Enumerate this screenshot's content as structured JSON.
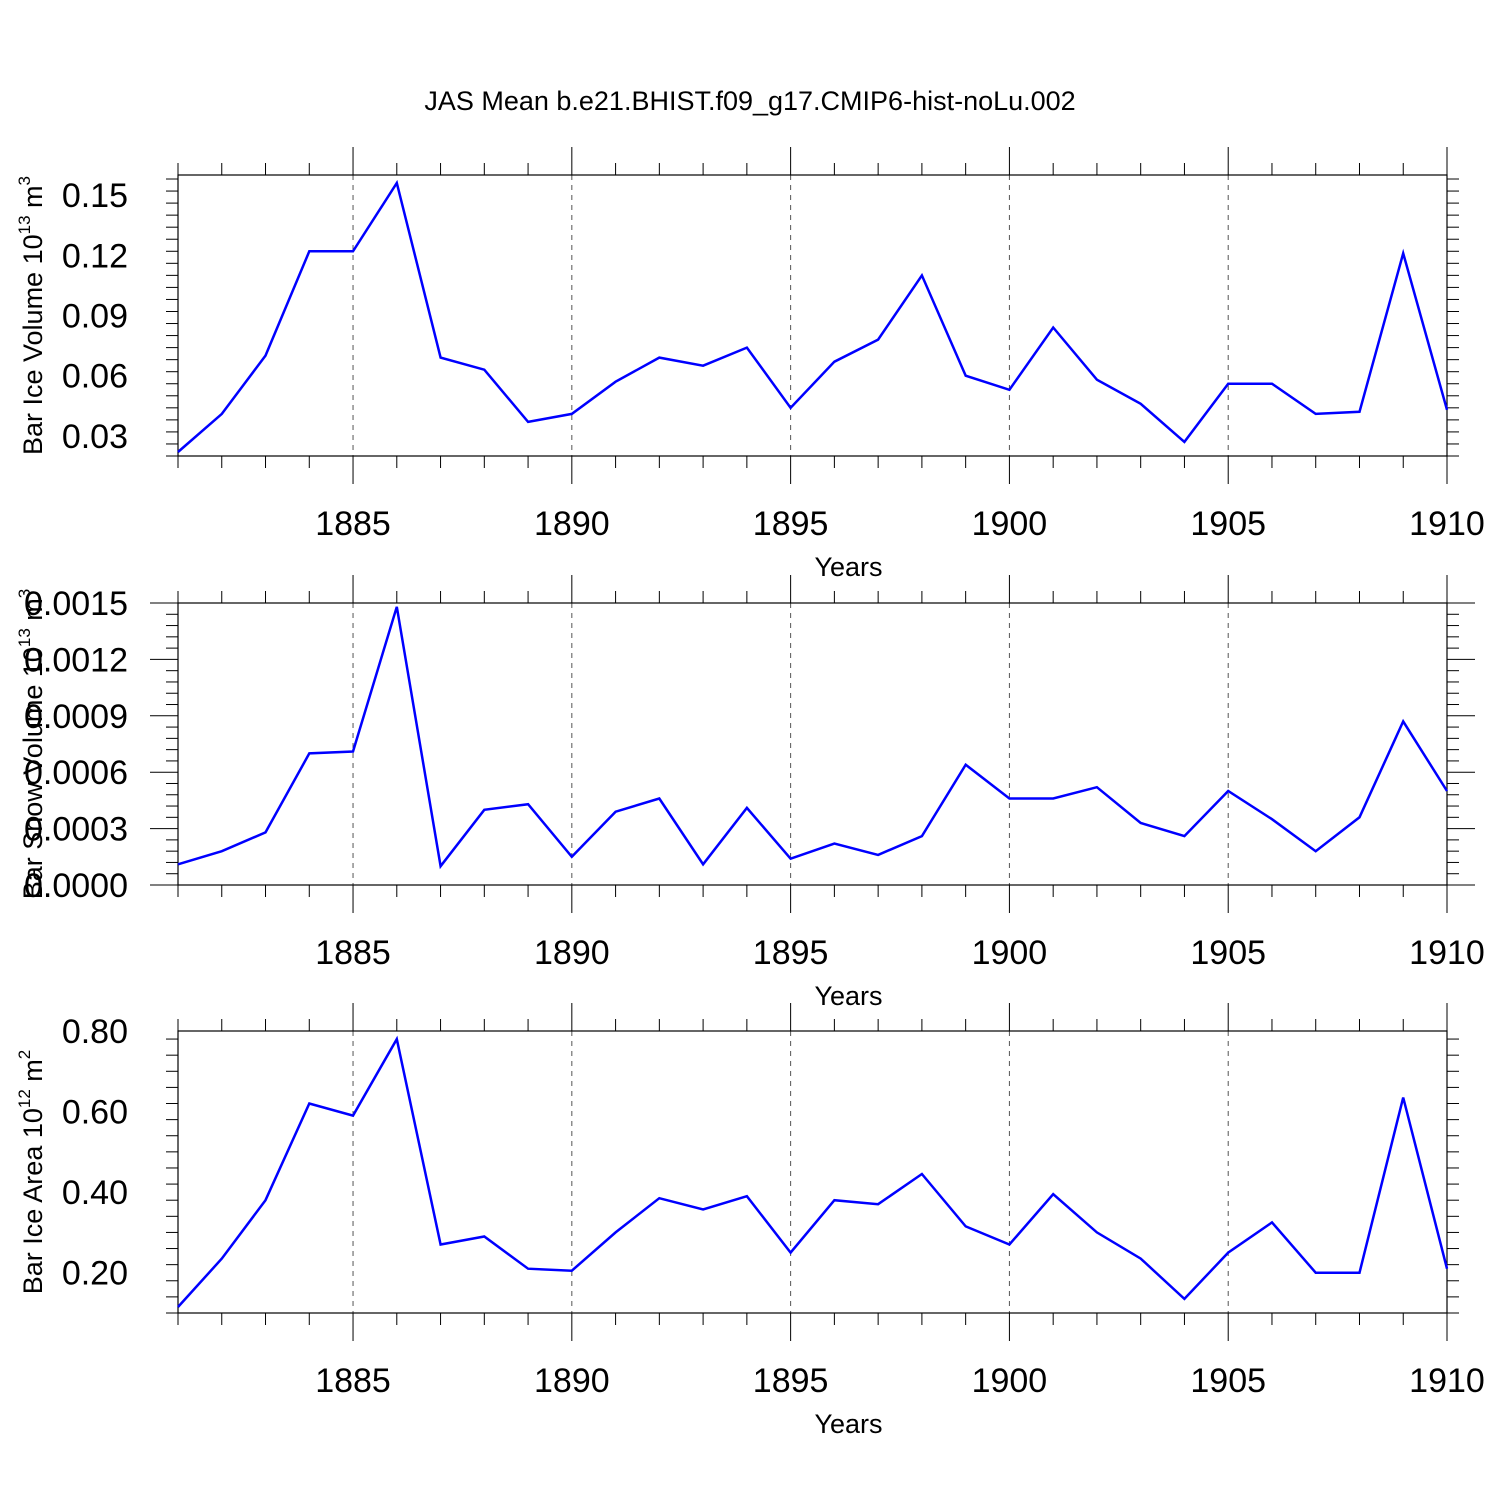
{
  "title": "JAS Mean b.e21.BHIST.f09_g17.CMIP6-hist-noLu.002",
  "chart_data": [
    {
      "type": "line",
      "title": "JAS Mean b.e21.BHIST.f09_g17.CMIP6-hist-noLu.002",
      "xlabel": "Years",
      "ylabel": "Bar Ice Volume 10",
      "ylabel_sup": "13",
      "ylabel_unit": " m",
      "ylabel_unit_sup": "3",
      "xlim": [
        1881,
        1910
      ],
      "ylim": [
        0.02,
        0.16
      ],
      "xticks": [
        "1885",
        "1890",
        "1895",
        "1900",
        "1905",
        "1910"
      ],
      "yticks": [
        "0.03",
        "0.06",
        "0.09",
        "0.12",
        "0.15"
      ],
      "grid": "dashed vertical at major x ticks",
      "color": "#0000ff",
      "x": [
        1881,
        1882,
        1883,
        1884,
        1885,
        1886,
        1887,
        1888,
        1889,
        1890,
        1891,
        1892,
        1893,
        1894,
        1895,
        1896,
        1897,
        1898,
        1899,
        1900,
        1901,
        1902,
        1903,
        1904,
        1905,
        1906,
        1907,
        1908,
        1909,
        1910
      ],
      "values": [
        0.022,
        0.041,
        0.07,
        0.122,
        0.122,
        0.156,
        0.069,
        0.063,
        0.037,
        0.041,
        0.057,
        0.069,
        0.065,
        0.074,
        0.044,
        0.067,
        0.078,
        0.11,
        0.06,
        0.053,
        0.084,
        0.058,
        0.046,
        0.027,
        0.056,
        0.056,
        0.041,
        0.042,
        0.121,
        0.043
      ]
    },
    {
      "type": "line",
      "xlabel": "Years",
      "ylabel": "Bar Snow Volume 10",
      "ylabel_sup": "13",
      "ylabel_unit": " m",
      "ylabel_unit_sup": "3",
      "xlim": [
        1881,
        1910
      ],
      "ylim": [
        0.0,
        0.0015
      ],
      "xticks": [
        "1885",
        "1890",
        "1895",
        "1900",
        "1905",
        "1910"
      ],
      "yticks": [
        "0.0000",
        "0.0003",
        "0.0006",
        "0.0009",
        "0.0012",
        "0.0015"
      ],
      "grid": "dashed vertical at major x ticks",
      "color": "#0000ff",
      "x": [
        1881,
        1882,
        1883,
        1884,
        1885,
        1886,
        1887,
        1888,
        1889,
        1890,
        1891,
        1892,
        1893,
        1894,
        1895,
        1896,
        1897,
        1898,
        1899,
        1900,
        1901,
        1902,
        1903,
        1904,
        1905,
        1906,
        1907,
        1908,
        1909,
        1910
      ],
      "values": [
        0.00011,
        0.00018,
        0.00028,
        0.0007,
        0.00071,
        0.00148,
        0.0001,
        0.0004,
        0.00043,
        0.00015,
        0.00039,
        0.00046,
        0.00011,
        0.00041,
        0.00014,
        0.00022,
        0.00016,
        0.00026,
        0.00064,
        0.00046,
        0.00046,
        0.00052,
        0.00033,
        0.00026,
        0.0005,
        0.00035,
        0.00018,
        0.00036,
        0.00087,
        0.0005
      ]
    },
    {
      "type": "line",
      "xlabel": "Years",
      "ylabel": "Bar Ice Area 10",
      "ylabel_sup": "12",
      "ylabel_unit": " m",
      "ylabel_unit_sup": "2",
      "xlim": [
        1881,
        1910
      ],
      "ylim": [
        0.1,
        0.8
      ],
      "xticks": [
        "1885",
        "1890",
        "1895",
        "1900",
        "1905",
        "1910"
      ],
      "yticks": [
        "0.20",
        "0.40",
        "0.60",
        "0.80"
      ],
      "grid": "dashed vertical at major x ticks",
      "color": "#0000ff",
      "x": [
        1881,
        1882,
        1883,
        1884,
        1885,
        1886,
        1887,
        1888,
        1889,
        1890,
        1891,
        1892,
        1893,
        1894,
        1895,
        1896,
        1897,
        1898,
        1899,
        1900,
        1901,
        1902,
        1903,
        1904,
        1905,
        1906,
        1907,
        1908,
        1909,
        1910
      ],
      "values": [
        0.115,
        0.235,
        0.38,
        0.62,
        0.59,
        0.78,
        0.27,
        0.29,
        0.21,
        0.205,
        0.3,
        0.385,
        0.357,
        0.39,
        0.25,
        0.38,
        0.37,
        0.445,
        0.315,
        0.27,
        0.395,
        0.3,
        0.235,
        0.135,
        0.25,
        0.325,
        0.2,
        0.2,
        0.635,
        0.21
      ]
    }
  ]
}
